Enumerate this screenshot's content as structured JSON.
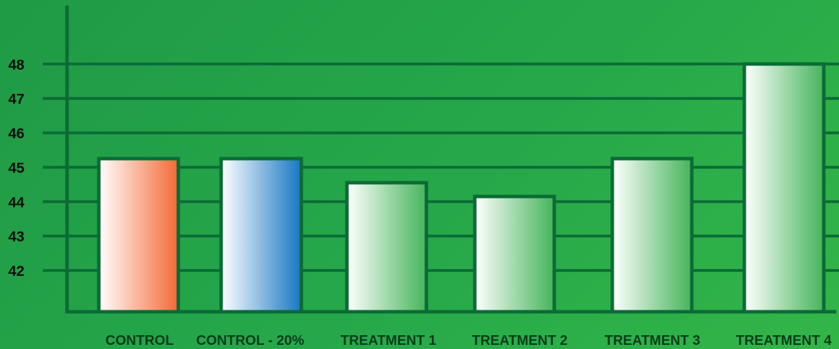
{
  "chart_data": {
    "type": "bar",
    "title": "",
    "xlabel": "",
    "ylabel": "",
    "categories": [
      "CONTROL",
      "CONTROL - 20%",
      "TREATMENT 1",
      "TREATMENT 2",
      "TREATMENT 3",
      "TREATMENT 4"
    ],
    "values": [
      45.25,
      45.25,
      44.55,
      44.15,
      45.25,
      48.0
    ],
    "y_ticks": [
      42,
      43,
      44,
      45,
      46,
      47,
      48
    ],
    "ylim": [
      40.8,
      49.7
    ],
    "grid": true,
    "legend": "none",
    "colors": {
      "background": "#26a84a",
      "axis": "#0b6b36",
      "grid": "#0b6b36",
      "bar_outline": "#0b6b36",
      "bar_fills": [
        [
          "#ffffff",
          "#f26a35"
        ],
        [
          "#ffffff",
          "#1677c2"
        ],
        [
          "#ffffff",
          "#45b45a"
        ],
        [
          "#ffffff",
          "#45b45a"
        ],
        [
          "#ffffff",
          "#45b45a"
        ],
        [
          "#ffffff",
          "#45b45a"
        ]
      ]
    }
  }
}
